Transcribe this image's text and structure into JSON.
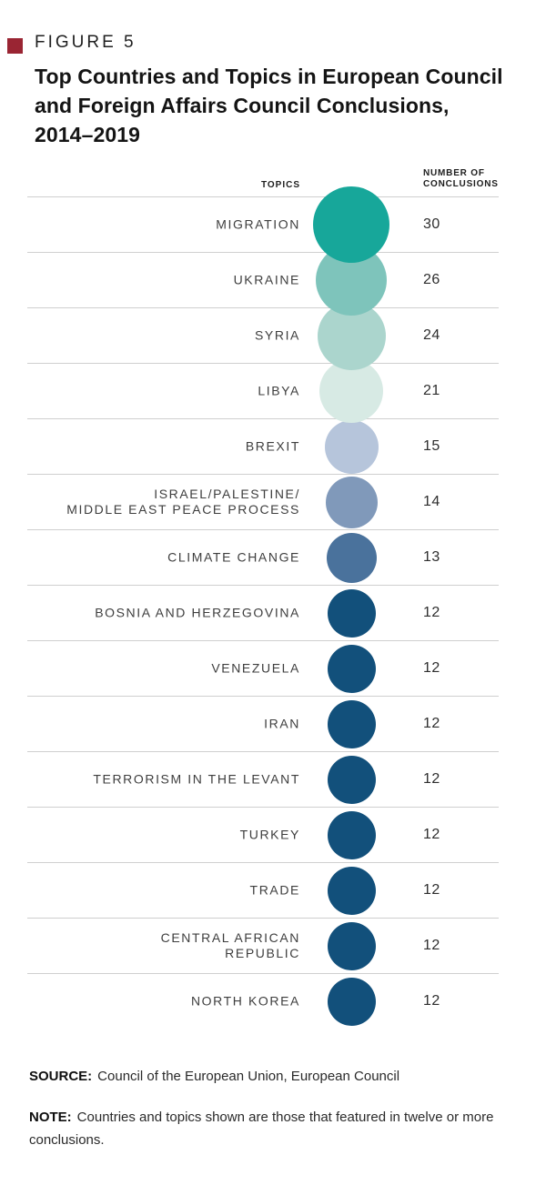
{
  "brand": {
    "square_color": "#9A2533"
  },
  "figure": {
    "label": "FIGURE 5",
    "title": "Top Countries and Topics in European Council\nand Foreign Affairs Council Conclusions,\n2014–2019"
  },
  "chart_data": {
    "type": "bubble",
    "title": "Top Countries and Topics in European Council and Foreign Affairs Council Conclusions, 2014–2019",
    "columns": {
      "topics_header": "TOPICS",
      "value_header": "NUMBER OF\nCONCLUSIONS"
    },
    "value_encoding": "bubble area proportional to number of conclusions",
    "value_range": [
      12,
      30
    ],
    "rows": [
      {
        "topic": "MIGRATION",
        "value": 30,
        "color": "#17a79a"
      },
      {
        "topic": "UKRAINE",
        "value": 26,
        "color": "#7ec4bb"
      },
      {
        "topic": "SYRIA",
        "value": 24,
        "color": "#abd5cd"
      },
      {
        "topic": "LIBYA",
        "value": 21,
        "color": "#d7eae4"
      },
      {
        "topic": "BREXIT",
        "value": 15,
        "color": "#b6c5db"
      },
      {
        "topic": "ISRAEL/PALESTINE/\nMIDDLE EAST PEACE PROCESS",
        "value": 14,
        "color": "#8099ba"
      },
      {
        "topic": "CLIMATE CHANGE",
        "value": 13,
        "color": "#4a729c"
      },
      {
        "topic": "BOSNIA AND HERZEGOVINA",
        "value": 12,
        "color": "#12507b"
      },
      {
        "topic": "VENEZUELA",
        "value": 12,
        "color": "#12507b"
      },
      {
        "topic": "IRAN",
        "value": 12,
        "color": "#12507b"
      },
      {
        "topic": "TERRORISM IN THE LEVANT",
        "value": 12,
        "color": "#12507b"
      },
      {
        "topic": "TURKEY",
        "value": 12,
        "color": "#12507b"
      },
      {
        "topic": "TRADE",
        "value": 12,
        "color": "#12507b"
      },
      {
        "topic": "CENTRAL AFRICAN\nREPUBLIC",
        "value": 12,
        "color": "#12507b"
      },
      {
        "topic": "NORTH KOREA",
        "value": 12,
        "color": "#12507b"
      }
    ]
  },
  "footer": {
    "source_label": "SOURCE:",
    "source_text": "Council of the European Union, European Council",
    "note_label": "NOTE:",
    "note_text": "Countries and topics shown are those that featured in twelve or more conclusions."
  }
}
